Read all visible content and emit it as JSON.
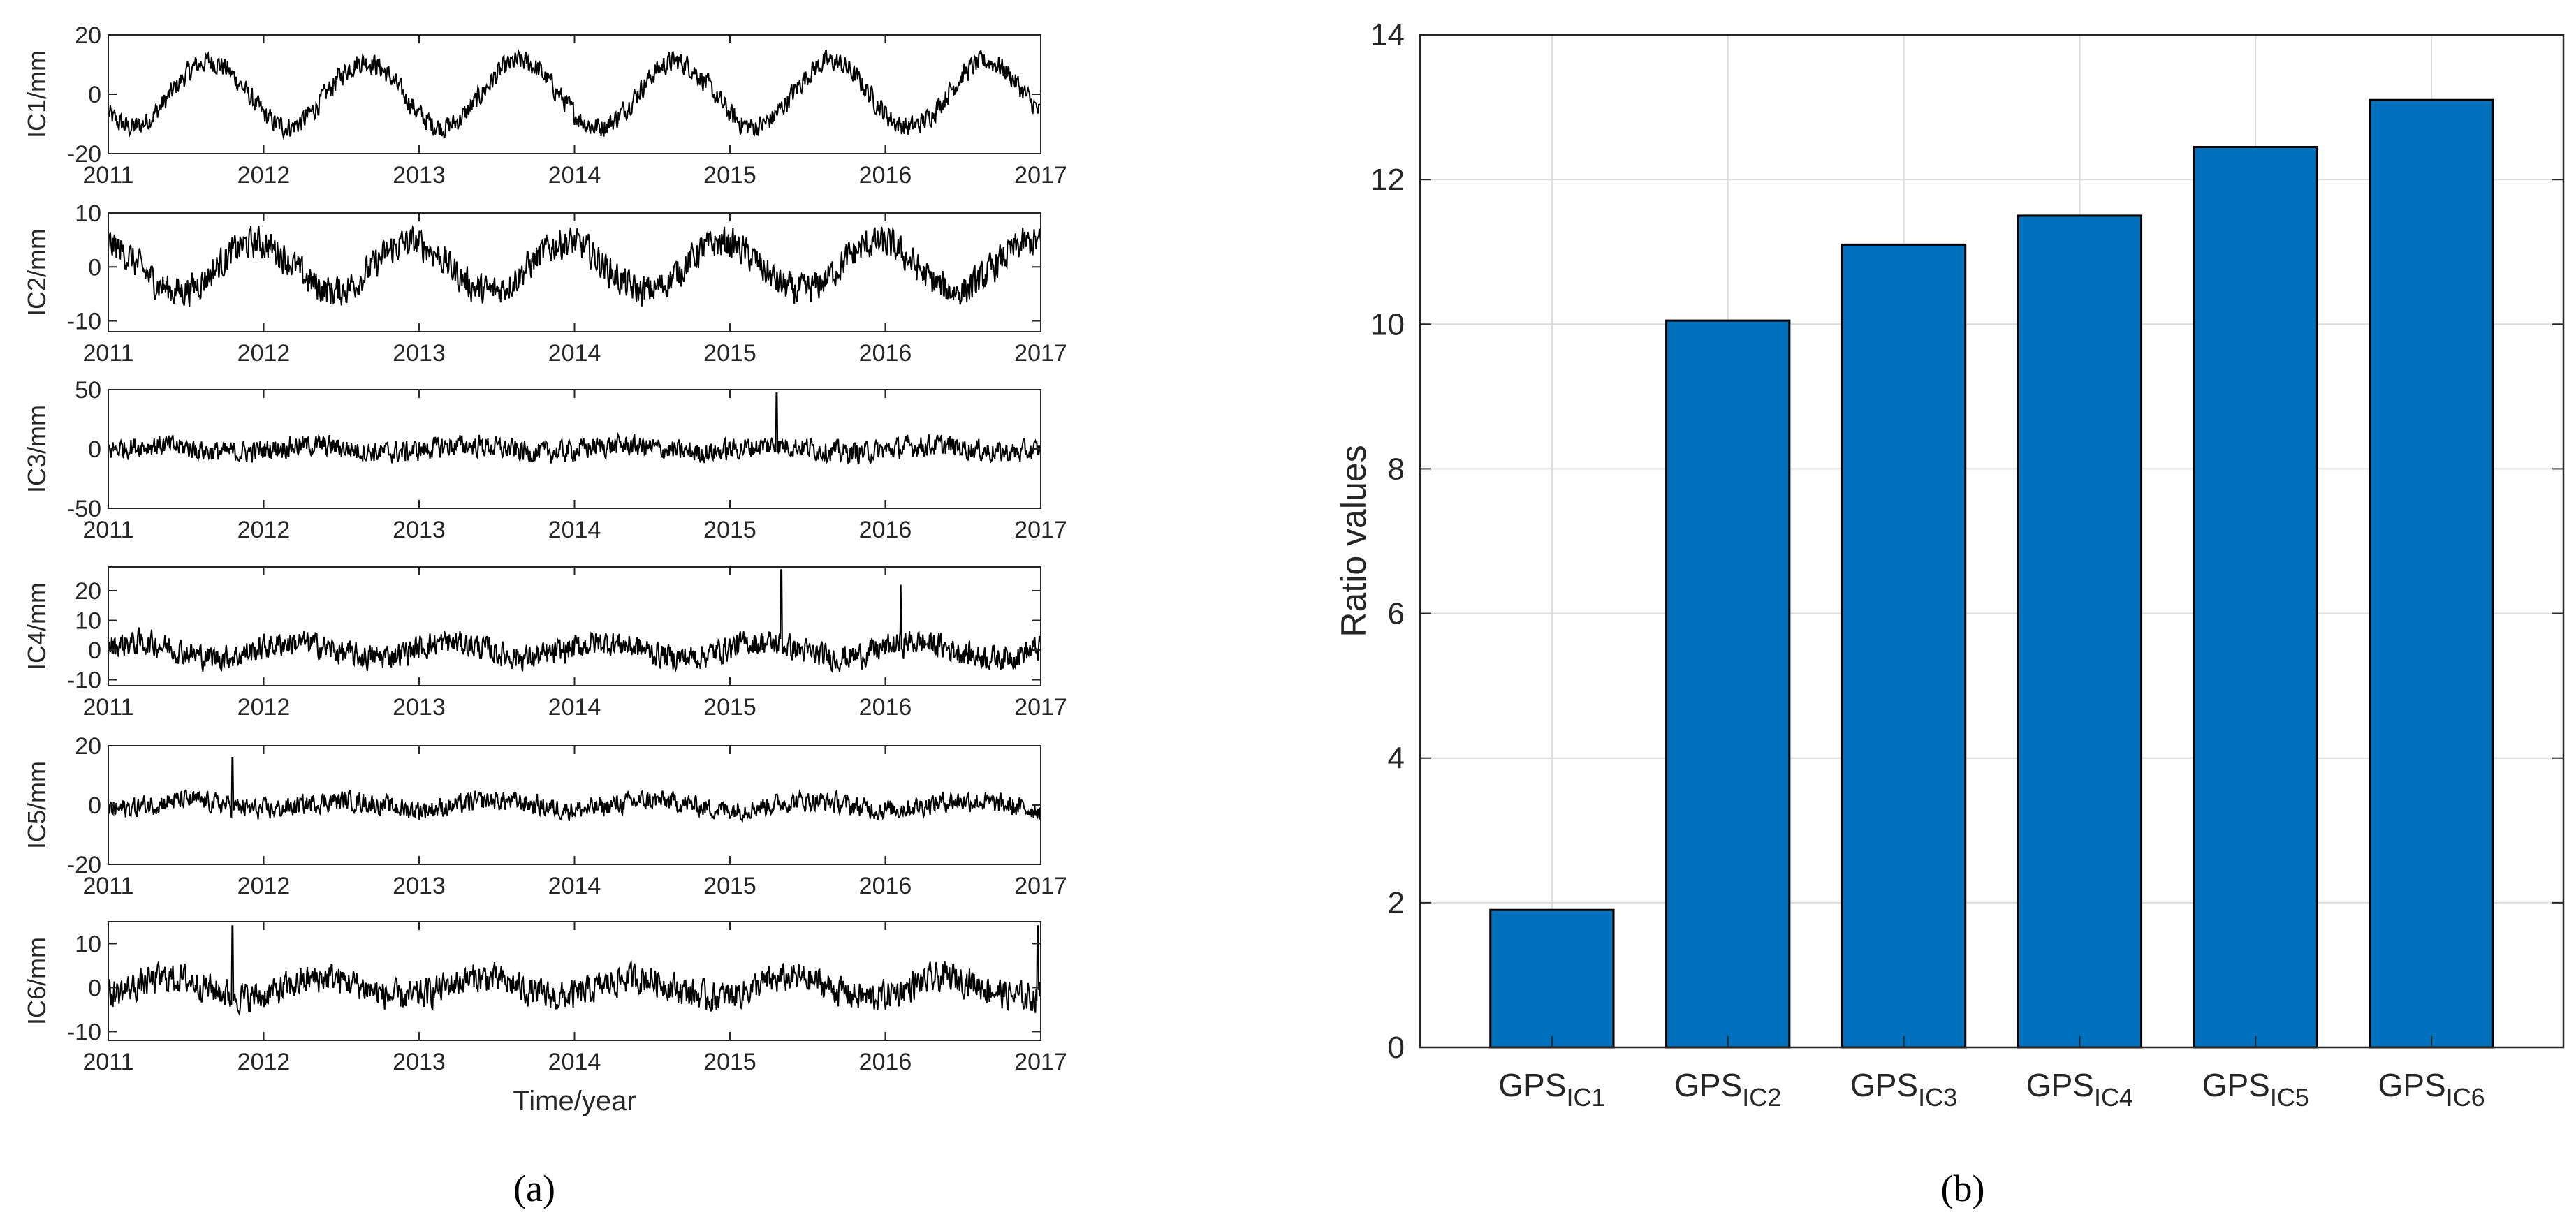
{
  "chart_data": [
    {
      "id": "a",
      "type": "line",
      "panel_label": "(a)",
      "xlabel": "Time/year",
      "xlim": [
        2011,
        2017
      ],
      "x_ticks": [
        "2011",
        "2012",
        "2013",
        "2014",
        "2015",
        "2016",
        "2017"
      ],
      "line_color": "#000000",
      "subplots": [
        {
          "ylabel": "IC1/mm",
          "ylim": [
            -20,
            20
          ],
          "y_ticks": [
            "-20",
            "0",
            "20"
          ],
          "pattern": {
            "annual_amplitude": 11,
            "annual_phase_year": 2011.65,
            "trend": 0.0,
            "noise": 3.2,
            "spikes": []
          }
        },
        {
          "ylabel": "IC2/mm",
          "ylim": [
            -12,
            10
          ],
          "y_ticks": [
            "-10",
            "0",
            "10"
          ],
          "pattern": {
            "annual_amplitude": 4.5,
            "annual_phase_year": 2011.95,
            "trend": 0.0,
            "noise": 2.6,
            "spikes": []
          }
        },
        {
          "ylabel": "IC3/mm",
          "ylim": [
            -50,
            50
          ],
          "y_ticks": [
            "-50",
            "0",
            "50"
          ],
          "pattern": {
            "annual_amplitude": 3,
            "annual_phase_year": 2011.3,
            "trend": 0.0,
            "noise": 8,
            "spikes": [
              {
                "x": 2015.3,
                "y": 47
              }
            ]
          }
        },
        {
          "ylabel": "IC4/mm",
          "ylim": [
            -12,
            28
          ],
          "y_ticks": [
            "-10",
            "0",
            "10",
            "20"
          ],
          "pattern": {
            "annual_amplitude": 2.5,
            "annual_phase_year": 2011.2,
            "trend": 0.0,
            "noise": 3.8,
            "spikes": [
              {
                "x": 2015.33,
                "y": 27
              },
              {
                "x": 2016.1,
                "y": 22
              }
            ]
          }
        },
        {
          "ylabel": "IC5/mm",
          "ylim": [
            -20,
            20
          ],
          "y_ticks": [
            "-20",
            "0",
            "20"
          ],
          "pattern": {
            "annual_amplitude": 1.5,
            "annual_phase_year": 2011.5,
            "trend": 0.0,
            "noise": 3.0,
            "spikes": [
              {
                "x": 2011.8,
                "y": 16
              }
            ]
          }
        },
        {
          "ylabel": "IC6/mm",
          "ylim": [
            -12,
            15
          ],
          "y_ticks": [
            "-10",
            "0",
            "10"
          ],
          "pattern": {
            "annual_amplitude": 2.2,
            "annual_phase_year": 2013.4,
            "trend": 0.0,
            "noise": 3.0,
            "spikes": [
              {
                "x": 2011.8,
                "y": 14
              },
              {
                "x": 2016.98,
                "y": 14
              }
            ]
          }
        }
      ]
    },
    {
      "id": "b",
      "type": "bar",
      "panel_label": "(b)",
      "categories": [
        "GPS_IC1",
        "GPS_IC2",
        "GPS_IC3",
        "GPS_IC4",
        "GPS_IC5",
        "GPS_IC6"
      ],
      "category_labels": [
        {
          "main": "GPS",
          "sub": "IC1"
        },
        {
          "main": "GPS",
          "sub": "IC2"
        },
        {
          "main": "GPS",
          "sub": "IC3"
        },
        {
          "main": "GPS",
          "sub": "IC4"
        },
        {
          "main": "GPS",
          "sub": "IC5"
        },
        {
          "main": "GPS",
          "sub": "IC6"
        }
      ],
      "values": [
        1.9,
        10.05,
        11.1,
        11.5,
        12.45,
        13.1
      ],
      "ylabel": "Ratio values",
      "ylim": [
        0,
        14
      ],
      "y_ticks": [
        "0",
        "2",
        "4",
        "6",
        "8",
        "10",
        "12",
        "14"
      ],
      "grid": true,
      "bar_color": "#0072BD"
    }
  ]
}
